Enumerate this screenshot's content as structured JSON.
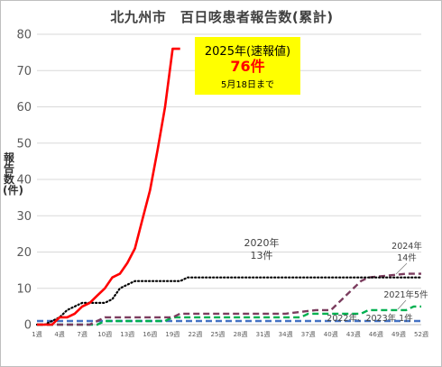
{
  "chart_data": {
    "type": "line",
    "title": "北九州市　百日咳患者報告数(累計)",
    "ylabel": "報告数(件)",
    "xlabel": "",
    "ylim": [
      0,
      80
    ],
    "yticks": [
      "0",
      "10",
      "20",
      "30",
      "40",
      "50",
      "60",
      "70",
      "80"
    ],
    "xlim": [
      1,
      52
    ],
    "xticks": [
      "1週",
      "4週",
      "7週",
      "10週",
      "13週",
      "16週",
      "19週",
      "22週",
      "25週",
      "28週",
      "31週",
      "34週",
      "37週",
      "40週",
      "43週",
      "46週",
      "49週",
      "52週"
    ],
    "grid": "horizontal",
    "series": [
      {
        "name": "2025年",
        "color": "#ff0000",
        "style": "solid",
        "x": [
          1,
          2,
          3,
          4,
          5,
          6,
          7,
          8,
          9,
          10,
          11,
          12,
          13,
          14,
          15,
          16,
          17,
          18,
          19,
          20
        ],
        "y": [
          0,
          0,
          0,
          2,
          2,
          3,
          5,
          6,
          8,
          10,
          13,
          14,
          17,
          21,
          29,
          37,
          48,
          60,
          76,
          76
        ]
      },
      {
        "name": "2020年",
        "color": "#000000",
        "style": "dotted",
        "x": [
          1,
          2,
          3,
          4,
          5,
          6,
          7,
          8,
          9,
          10,
          11,
          12,
          13,
          14,
          15,
          16,
          17,
          18,
          19,
          20,
          21,
          22,
          23,
          52
        ],
        "y": [
          0,
          0,
          1,
          2,
          4,
          5,
          6,
          6,
          6,
          6,
          7,
          10,
          11,
          12,
          12,
          12,
          12,
          12,
          12,
          12,
          13,
          13,
          13,
          13
        ]
      },
      {
        "name": "2024年",
        "color": "#7b3c5e",
        "style": "dashed",
        "x": [
          1,
          8,
          9,
          10,
          18,
          19,
          20,
          22,
          24,
          26,
          28,
          30,
          34,
          38,
          40,
          42,
          44,
          45,
          50,
          52
        ],
        "y": [
          0,
          0,
          1,
          2,
          2,
          2,
          3,
          3,
          3,
          3,
          3,
          3,
          3,
          4,
          4,
          8,
          12,
          13,
          14,
          14
        ]
      },
      {
        "name": "2021年",
        "color": "#00b050",
        "style": "dashed",
        "x": [
          1,
          9,
          10,
          18,
          19,
          36,
          37,
          44,
          45,
          50,
          51,
          52
        ],
        "y": [
          0,
          0,
          1,
          1,
          2,
          2,
          3,
          3,
          4,
          4,
          5,
          5
        ],
        "annotation": "2021年5件"
      },
      {
        "name": "2022年、2023年",
        "color": "#4472c4",
        "style": "dashed",
        "x": [
          1,
          52
        ],
        "y": [
          1,
          1
        ]
      }
    ],
    "annotations": [
      {
        "id": "a2020",
        "line1": "2020年",
        "line2": "13件"
      },
      {
        "id": "a2024",
        "line1": "2024年",
        "line2": "14件"
      },
      {
        "id": "a2021",
        "text": "2021年5件"
      },
      {
        "id": "a2223",
        "text": "2022年、2023年  1件"
      }
    ],
    "callout": {
      "line1": "2025年(速報値)",
      "line2": "76件",
      "line3": "5月18日まで"
    }
  }
}
